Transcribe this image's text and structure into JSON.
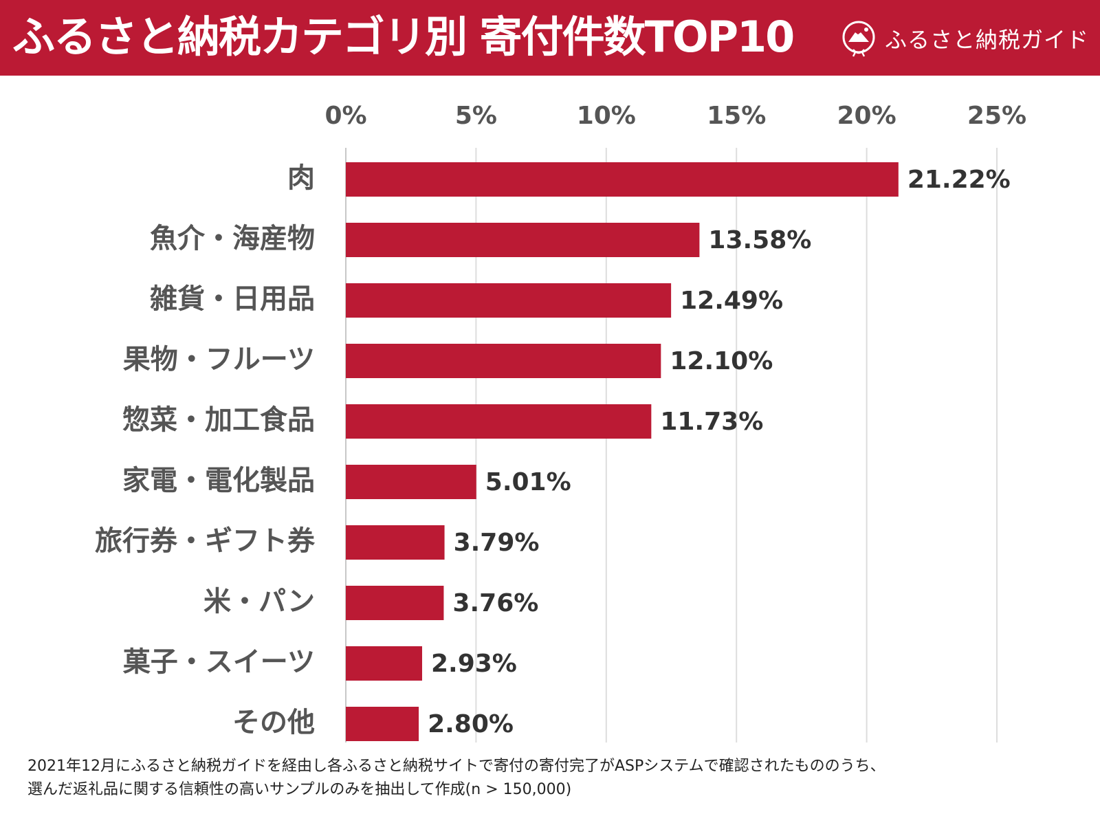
{
  "header": {
    "title": "ふるさと納税カテゴリ別 寄付件数TOP10",
    "brand_name": "ふるさと納税ガイド",
    "brand_icon": "mount-fuji-seal-icon",
    "background_color": "#BB1A34"
  },
  "chart_data": {
    "type": "bar",
    "orientation": "horizontal",
    "title": "ふるさと納税カテゴリ別 寄付件数TOP10",
    "categories": [
      "肉",
      "魚介・海産物",
      "雑貨・日用品",
      "果物・フルーツ",
      "惣菜・加工食品",
      "家電・電化製品",
      "旅行券・ギフト券",
      "米・パン",
      "菓子・スイーツ",
      "その他"
    ],
    "values": [
      21.22,
      13.58,
      12.49,
      12.1,
      11.73,
      5.01,
      3.79,
      3.76,
      2.93,
      2.8
    ],
    "value_labels": [
      "21.22%",
      "13.58%",
      "12.49%",
      "12.10%",
      "11.73%",
      "5.01%",
      "3.79%",
      "3.76%",
      "2.93%",
      "2.80%"
    ],
    "x_ticks": [
      0,
      5,
      10,
      15,
      20,
      25
    ],
    "x_tick_labels": [
      "0%",
      "5%",
      "10%",
      "15%",
      "20%",
      "25%"
    ],
    "xlim": [
      0,
      25
    ],
    "xlabel": "",
    "ylabel": "",
    "axis_position": "top",
    "grid": true,
    "bar_color": "#BB1A34"
  },
  "footnote": {
    "line1": "2021年12月にふるさと納税ガイドを経由し各ふるさと納税サイトで寄付の寄付完了がASPシステムで確認されたもののうち、",
    "line2": "選んだ返礼品に関する信頼性の高いサンプルのみを抽出して作成(n > 150,000)"
  }
}
